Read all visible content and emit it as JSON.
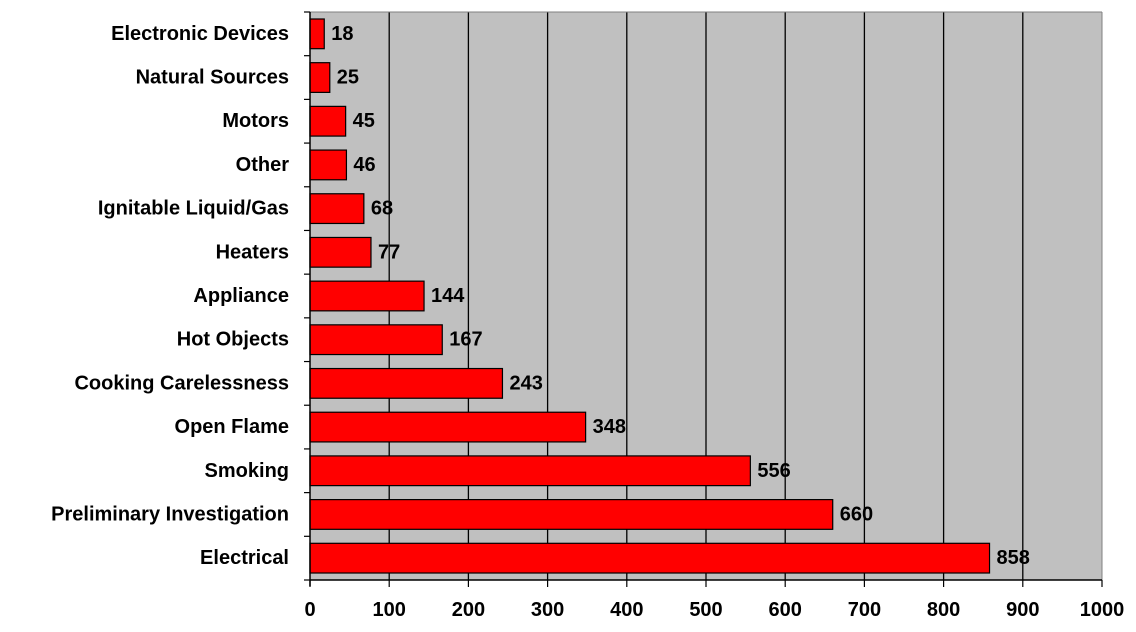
{
  "chart_data": {
    "type": "bar",
    "orientation": "horizontal",
    "title": "",
    "xlabel": "",
    "ylabel": "",
    "categories": [
      "Electronic Devices",
      "Natural Sources",
      "Motors",
      "Other",
      "Ignitable Liquid/Gas",
      "Heaters",
      "Appliance",
      "Hot Objects",
      "Cooking Carelessness",
      "Open Flame",
      "Smoking",
      "Preliminary Investigation",
      "Electrical"
    ],
    "values": [
      18,
      25,
      45,
      46,
      68,
      77,
      144,
      167,
      243,
      348,
      556,
      660,
      858
    ],
    "xlim": [
      0,
      1000
    ],
    "xticks": [
      0,
      100,
      200,
      300,
      400,
      500,
      600,
      700,
      800,
      900,
      1000
    ],
    "grid": "vertical",
    "legend": "none",
    "colors": {
      "bar": "#ff0000",
      "bar_stroke": "#000000",
      "plot_background": "#c0c0c0",
      "gridline": "#000000",
      "text": "#000000"
    }
  }
}
